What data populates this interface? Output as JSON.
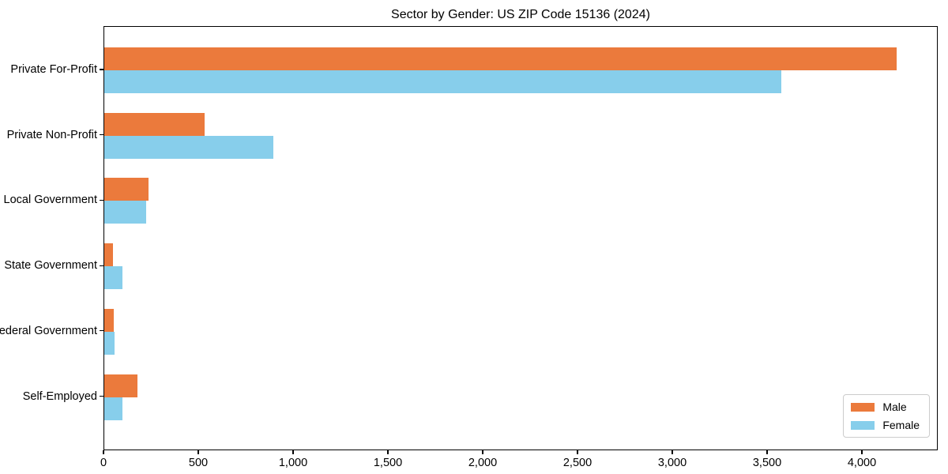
{
  "chart_data": {
    "type": "bar",
    "orientation": "horizontal",
    "title": "Sector by Gender: US ZIP Code 15136 (2024)",
    "categories": [
      "Private For-Profit",
      "Private Non-Profit",
      "Local Government",
      "State Government",
      "Federal Government",
      "Self-Employed"
    ],
    "series": [
      {
        "name": "Male",
        "color": "#eb7a3c",
        "values": [
          4180,
          530,
          235,
          45,
          50,
          175
        ]
      },
      {
        "name": "Female",
        "color": "#87ceeb",
        "values": [
          3570,
          890,
          220,
          95,
          55,
          95
        ]
      }
    ],
    "xlabel": "",
    "ylabel": "",
    "xlim": [
      0,
      4400
    ],
    "x_ticks": [
      0,
      500,
      1000,
      1500,
      2000,
      2500,
      3000,
      3500,
      4000
    ],
    "x_tick_labels": [
      "0",
      "500",
      "1,000",
      "1,500",
      "2,000",
      "2,500",
      "3,000",
      "3,500",
      "4,000"
    ],
    "grid": false,
    "legend_position": "lower right"
  },
  "legend": {
    "items": [
      {
        "label": "Male",
        "color": "#eb7a3c"
      },
      {
        "label": "Female",
        "color": "#87ceeb"
      }
    ]
  }
}
